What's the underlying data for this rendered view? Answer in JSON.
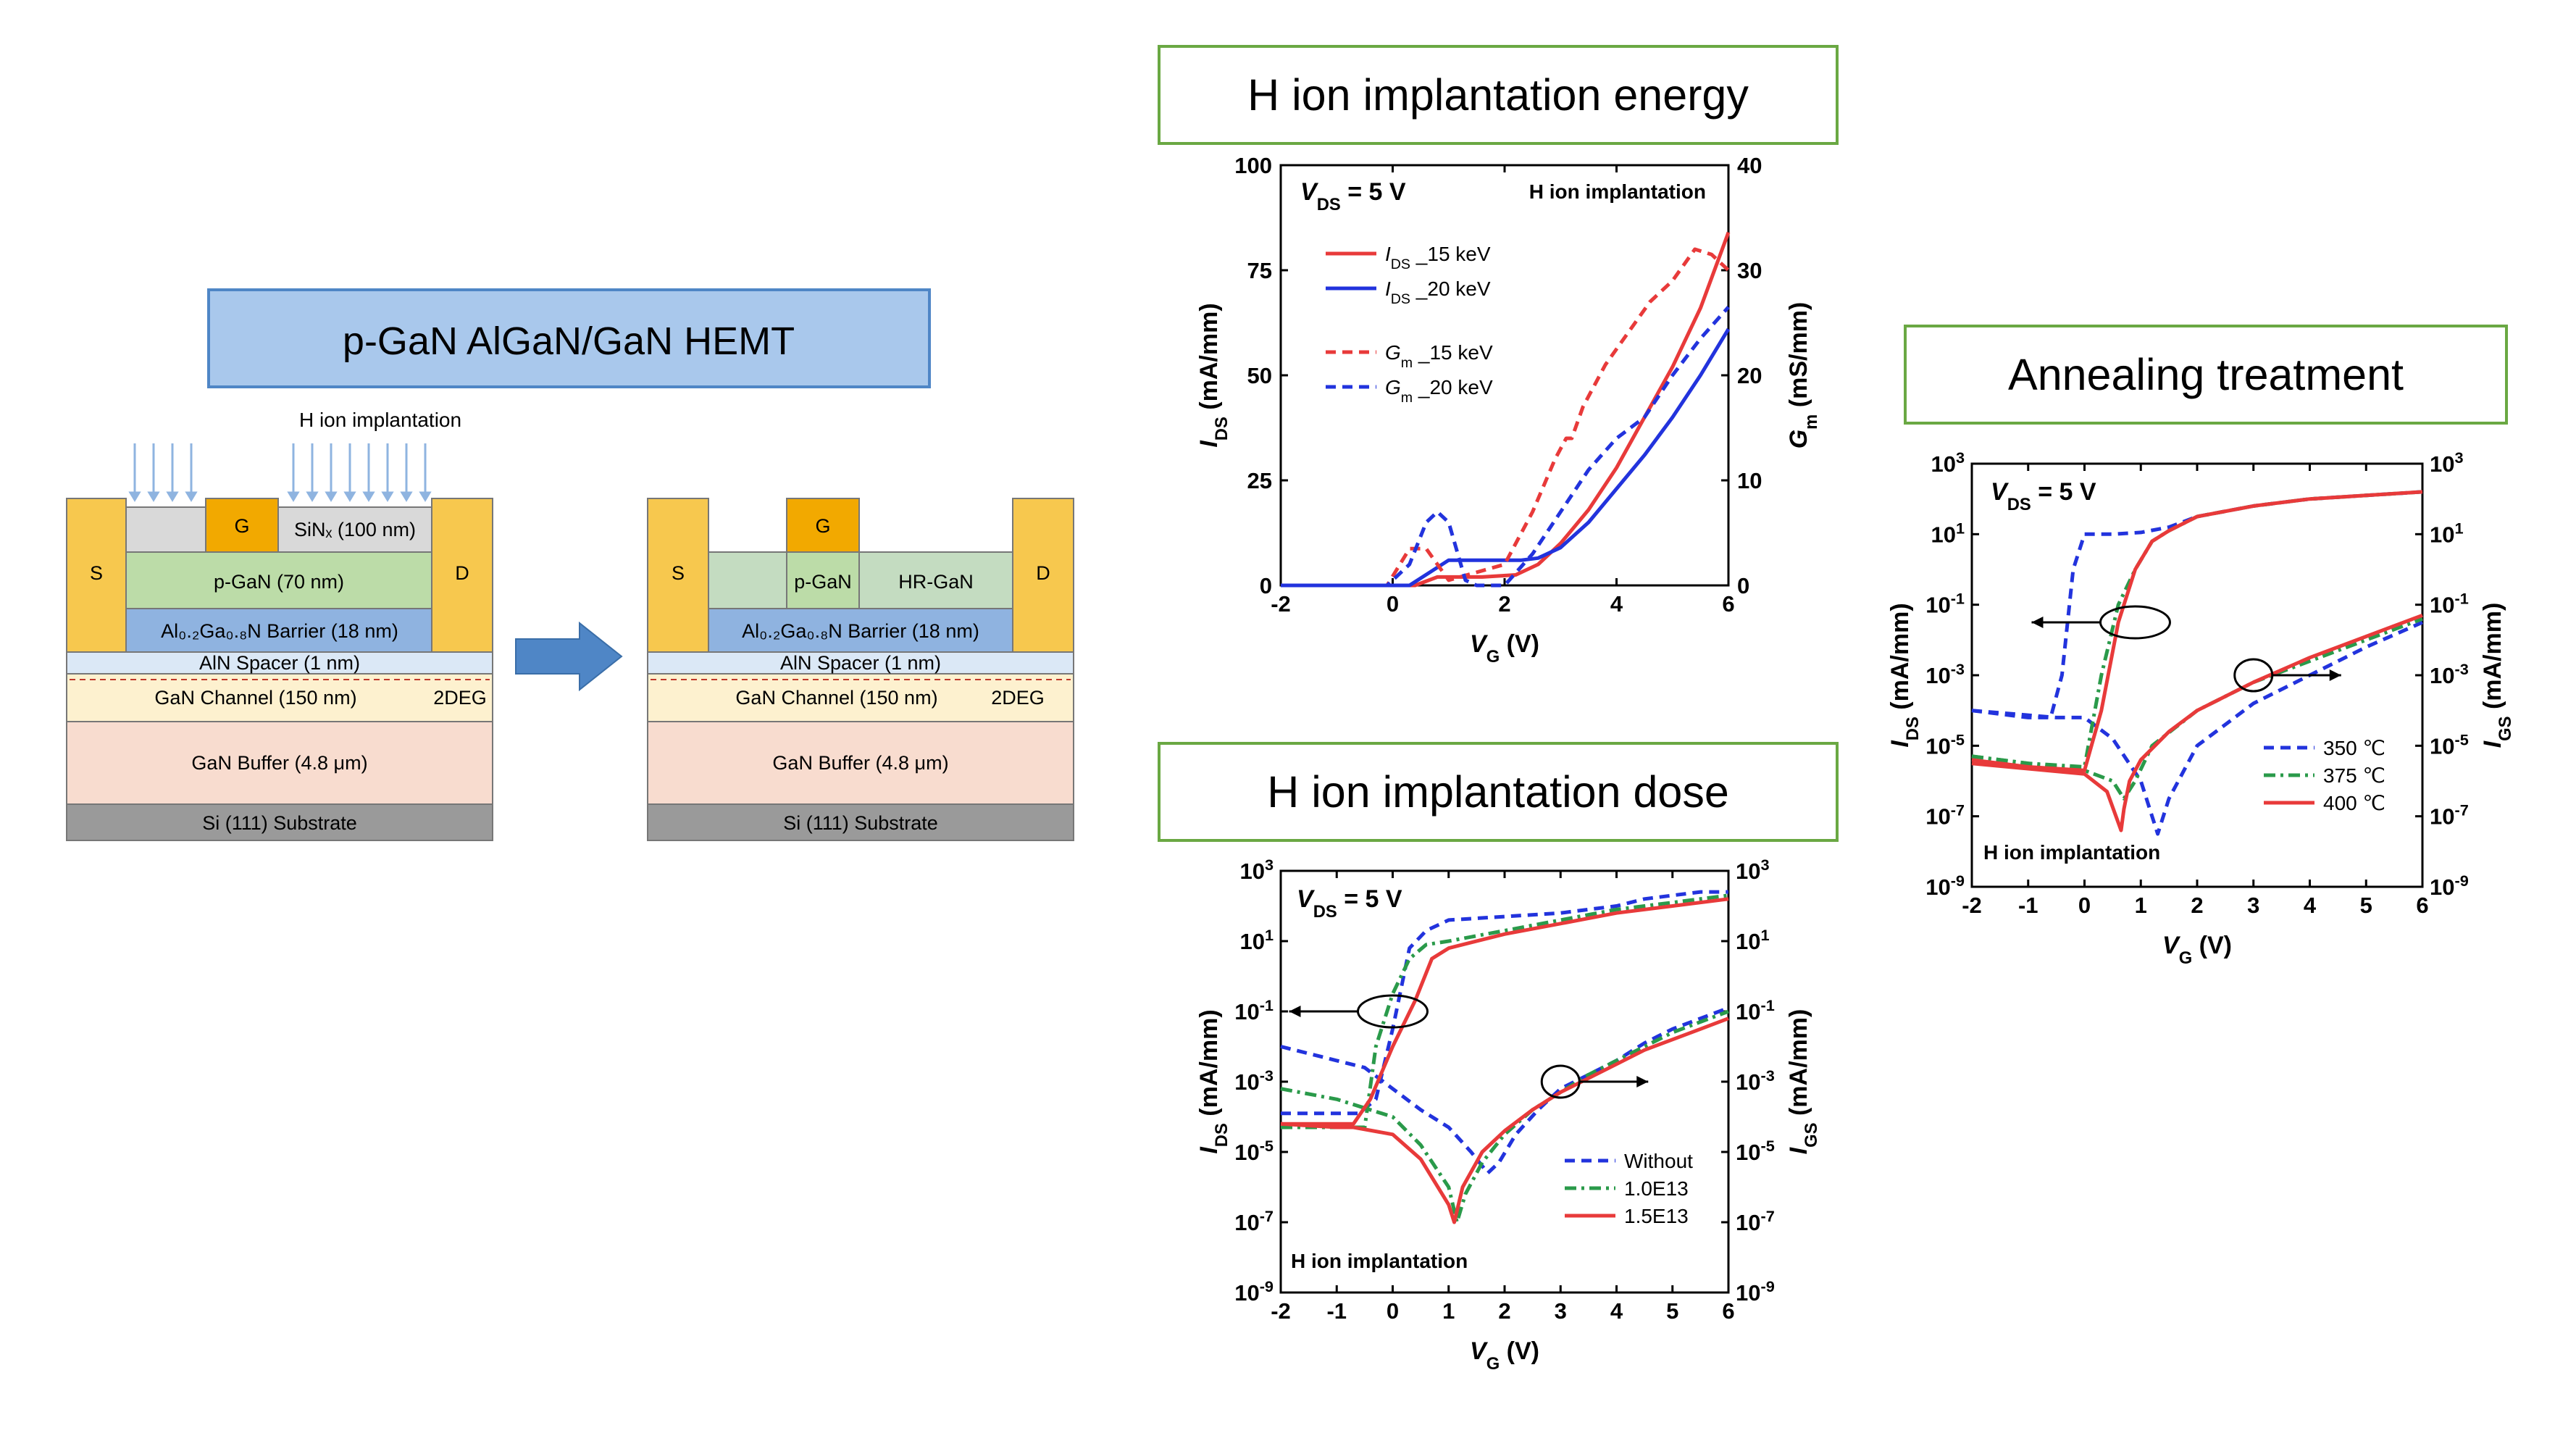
{
  "diagram": {
    "title": "p-GaN AlGaN/GaN HEMT",
    "implant_label": "H ion implantation",
    "device_before": {
      "source": "S",
      "gate": "G",
      "drain": "D",
      "sin": "SiNₓ (100 nm)",
      "pgan": "p-GaN (70 nm)",
      "barrier": "Al₀.₂Ga₀.₈N  Barrier (18 nm)",
      "spacer": "AlN Spacer (1 nm)",
      "channel": "GaN Channel (150 nm)",
      "twodeg": "2DEG",
      "buffer": "GaN Buffer (4.8 μm)",
      "substrate": "Si (111) Substrate"
    },
    "device_after": {
      "source": "S",
      "gate": "G",
      "drain": "D",
      "pgan": "p-GaN",
      "hrgan": "HR-GaN",
      "barrier": "Al₀.₂Ga₀.₈N  Barrier (18 nm)",
      "spacer": "AlN Spacer (1 nm)",
      "channel": "GaN Channel (150 nm)",
      "twodeg": "2DEG",
      "buffer": "GaN Buffer (4.8 μm)",
      "substrate": "Si (111) Substrate"
    }
  },
  "captions": {
    "energy": "H ion implantation energy",
    "dose": "H ion implantation dose",
    "anneal": "Annealing treatment"
  },
  "colors": {
    "red": "#e83a3a",
    "blue": "#2233dd",
    "green": "#2a9a4a",
    "caption_border": "#6aa843",
    "arrow": "#4f86c6"
  },
  "chart_data": [
    {
      "id": "energy",
      "type": "line",
      "vds": "V_DS = 5 V",
      "note": "H ion implantation",
      "xlabel": "V_G (V)",
      "ylabel": "I_DS (mA/mm)",
      "y2label": "G_m (mS/mm)",
      "xlim": [
        -2,
        6
      ],
      "ylim": [
        0,
        100
      ],
      "y2lim": [
        0,
        40
      ],
      "xticks": [
        "-2",
        "0",
        "2",
        "4",
        "6"
      ],
      "yticks": [
        "0",
        "25",
        "50",
        "75",
        "100"
      ],
      "y2ticks": [
        "0",
        "10",
        "20",
        "30",
        "40"
      ],
      "series": [
        {
          "name": "I_DS _15 keV",
          "axis": "left",
          "color": "red",
          "dash": "solid",
          "x": [
            -2,
            0.4,
            0.8,
            1.6,
            2.2,
            2.6,
            3.0,
            3.5,
            4.0,
            4.5,
            5.0,
            5.5,
            6.0
          ],
          "y": [
            0,
            0,
            2,
            2,
            2.5,
            5,
            10,
            18,
            28,
            40,
            52,
            66,
            84
          ]
        },
        {
          "name": "I_DS _20 keV",
          "axis": "left",
          "color": "blue",
          "dash": "solid",
          "x": [
            -2,
            0.3,
            1.0,
            2.3,
            2.6,
            3.0,
            3.5,
            4.0,
            4.5,
            5.0,
            5.5,
            6.0
          ],
          "y": [
            0,
            0,
            6,
            6,
            6.5,
            9,
            15,
            23,
            31,
            40,
            50,
            61
          ]
        },
        {
          "name": "G_m _15 keV",
          "axis": "right",
          "color": "red",
          "dash": "dash",
          "x": [
            -2,
            -0.1,
            0.3,
            0.6,
            1.0,
            2.0,
            2.5,
            2.9,
            3.1,
            3.2,
            3.4,
            3.8,
            4.2,
            4.6,
            5.0,
            5.4,
            5.7,
            6.0
          ],
          "y": [
            0,
            0,
            3.5,
            3.5,
            0.5,
            2,
            7,
            12,
            14,
            14,
            17,
            21,
            24,
            27,
            29,
            32,
            31.5,
            30
          ]
        },
        {
          "name": "G_m _20 keV",
          "axis": "right",
          "color": "blue",
          "dash": "dash",
          "x": [
            -2,
            -0.1,
            0.3,
            0.6,
            0.8,
            1.0,
            1.3,
            1.5,
            2.0,
            2.5,
            3.0,
            3.5,
            4.0,
            4.5,
            5.0,
            5.5,
            6.0
          ],
          "y": [
            0,
            0,
            2,
            6,
            7,
            6,
            0.5,
            0,
            0,
            3,
            7,
            11,
            14,
            16,
            20,
            23.5,
            26.5
          ]
        }
      ]
    },
    {
      "id": "dose",
      "type": "line",
      "vds": "V_DS = 5 V",
      "note": "H ion implantation",
      "xlabel": "V_G (V)",
      "ylabel": "I_DS (mA/mm)",
      "y2label": "I_GS (mA/mm)",
      "xlim": [
        -2,
        6
      ],
      "ylim_log10": [
        -9,
        3
      ],
      "xticks": [
        "-2",
        "-1",
        "0",
        "1",
        "2",
        "3",
        "4",
        "5",
        "6"
      ],
      "ytick_exponents": [
        "3",
        "1",
        "-1",
        "-3",
        "-5",
        "-7",
        "-9"
      ],
      "series": [
        {
          "name": "Without",
          "color": "blue",
          "dash": "dash",
          "x": [
            -2,
            -1.0,
            -0.5,
            0,
            0.5,
            1.0,
            1.4,
            1.7,
            1.9,
            2.2,
            2.6,
            3.0,
            3.5,
            4.0,
            4.5,
            5.0,
            5.5,
            6.0
          ],
          "log10y": [
            -2.0,
            -2.4,
            -2.6,
            -3.2,
            -3.8,
            -4.3,
            -5.0,
            -5.6,
            -5.3,
            -4.5,
            -3.8,
            -3.2,
            -2.8,
            -2.4,
            -1.9,
            -1.5,
            -1.2,
            -0.9
          ]
        },
        {
          "name": "Without_IDS",
          "color": "blue",
          "dash": "dash",
          "x": [
            -2,
            -0.6,
            -0.3,
            0,
            0.3,
            0.6,
            1.0,
            2.0,
            3.0,
            4.0,
            4.5,
            5.0,
            5.5,
            6.0
          ],
          "log10y": [
            -3.9,
            -3.9,
            -3.5,
            -1.5,
            0.8,
            1.3,
            1.6,
            1.7,
            1.8,
            2.0,
            2.2,
            2.3,
            2.4,
            2.4
          ]
        },
        {
          "name": "1.0E13",
          "color": "green",
          "dash": "dashdot",
          "x": [
            -2,
            -1.0,
            0,
            0.5,
            1.0,
            1.15,
            1.3,
            1.6,
            2.0,
            2.5,
            3.0,
            3.5,
            4.0,
            4.5,
            5.0,
            5.5,
            6.0
          ],
          "log10y": [
            -3.2,
            -3.5,
            -4.0,
            -4.8,
            -6.0,
            -7.0,
            -6.2,
            -5.3,
            -4.5,
            -3.8,
            -3.3,
            -2.8,
            -2.4,
            -2.0,
            -1.6,
            -1.3,
            -1.0
          ]
        },
        {
          "name": "1.0E13_IDS",
          "color": "green",
          "dash": "dashdot",
          "x": [
            -2,
            -0.5,
            -0.3,
            0,
            0.3,
            0.6,
            1.0,
            2.0,
            3.0,
            4.0,
            5.0,
            6.0
          ],
          "log10y": [
            -4.3,
            -4.3,
            -2.0,
            -0.5,
            0.5,
            0.9,
            1.0,
            1.3,
            1.6,
            1.9,
            2.1,
            2.3
          ]
        },
        {
          "name": "1.5E13",
          "color": "red",
          "dash": "solid",
          "x": [
            -2,
            -1.0,
            -0.7,
            0,
            0.5,
            1.0,
            1.1,
            1.25,
            1.6,
            2.0,
            2.5,
            3.0,
            3.5,
            4.0,
            4.5,
            5.0,
            5.5,
            6.0
          ],
          "log10y": [
            -4.2,
            -4.3,
            -4.3,
            -4.5,
            -5.2,
            -6.5,
            -7.0,
            -6.0,
            -5.0,
            -4.4,
            -3.8,
            -3.3,
            -2.9,
            -2.5,
            -2.1,
            -1.8,
            -1.5,
            -1.2
          ]
        },
        {
          "name": "1.5E13_IDS",
          "color": "red",
          "dash": "solid",
          "x": [
            -2,
            -0.7,
            -0.4,
            0,
            0.4,
            0.7,
            1.0,
            2.0,
            3.0,
            4.0,
            5.0,
            6.0
          ],
          "log10y": [
            -4.2,
            -4.2,
            -3.5,
            -2.0,
            -0.7,
            0.5,
            0.8,
            1.2,
            1.5,
            1.8,
            2.0,
            2.2
          ]
        }
      ]
    },
    {
      "id": "anneal",
      "type": "line",
      "vds": "V_DS = 5 V",
      "note": "H ion implantation",
      "xlabel": "V_G (V)",
      "ylabel": "I_DS (mA/mm)",
      "y2label": "I_GS (mA/mm)",
      "xlim": [
        -2,
        6
      ],
      "ylim_log10": [
        -9,
        3
      ],
      "xticks": [
        "-2",
        "-1",
        "0",
        "1",
        "2",
        "3",
        "4",
        "5",
        "6"
      ],
      "ytick_exponents": [
        "3",
        "1",
        "-1",
        "-3",
        "-5",
        "-7",
        "-9"
      ],
      "series": [
        {
          "name": "350 ℃",
          "color": "blue",
          "dash": "dash",
          "x": [
            -2,
            -1.0,
            -0.6,
            -0.4,
            -0.2,
            0,
            0.5,
            1.0,
            1.5,
            2.0,
            3.0,
            4.0,
            5.0,
            6.0
          ],
          "log10y": [
            -4.0,
            -4.2,
            -4.2,
            -3.0,
            0.0,
            1.0,
            1.0,
            1.05,
            1.2,
            1.5,
            1.8,
            2.0,
            2.1,
            2.2
          ]
        },
        {
          "name": "350_IGS",
          "color": "blue",
          "dash": "dash",
          "x": [
            -2,
            -0.5,
            0,
            0.5,
            1.0,
            1.2,
            1.3,
            1.5,
            2.0,
            3.0,
            4.0,
            5.0,
            6.0
          ],
          "log10y": [
            -4.0,
            -4.2,
            -4.2,
            -4.8,
            -6.0,
            -7.0,
            -7.5,
            -6.5,
            -5.0,
            -3.8,
            -3.0,
            -2.2,
            -1.5
          ]
        },
        {
          "name": "375 ℃",
          "color": "green",
          "dash": "dashdot",
          "x": [
            -2,
            -1.0,
            0,
            0.3,
            0.6,
            0.9,
            1.2,
            1.5,
            2.0,
            3.0,
            4.0,
            5.0,
            6.0
          ],
          "log10y": [
            -5.3,
            -5.5,
            -5.6,
            -3.0,
            -1.0,
            0.0,
            0.8,
            1.1,
            1.5,
            1.8,
            2.0,
            2.1,
            2.2
          ]
        },
        {
          "name": "375_IGS",
          "color": "green",
          "dash": "dashdot",
          "x": [
            -2,
            0,
            0.5,
            0.7,
            0.9,
            1.2,
            2.0,
            3.0,
            4.0,
            5.0,
            6.0
          ],
          "log10y": [
            -5.3,
            -5.7,
            -6.0,
            -6.5,
            -6.0,
            -5.0,
            -4.0,
            -3.2,
            -2.6,
            -2.0,
            -1.4
          ]
        },
        {
          "name": "400 ℃",
          "color": "red",
          "dash": "solid",
          "x": [
            -2,
            -1.0,
            0,
            0.3,
            0.6,
            0.9,
            1.2,
            1.5,
            2.0,
            3.0,
            4.0,
            5.0,
            6.0
          ],
          "log10y": [
            -5.4,
            -5.6,
            -5.7,
            -4.0,
            -1.5,
            0.0,
            0.8,
            1.1,
            1.5,
            1.8,
            2.0,
            2.1,
            2.2
          ]
        },
        {
          "name": "400_IGS",
          "color": "red",
          "dash": "solid",
          "x": [
            -2,
            0,
            0.4,
            0.65,
            0.7,
            0.8,
            1.0,
            1.5,
            2.0,
            3.0,
            4.0,
            5.0,
            6.0
          ],
          "log10y": [
            -5.5,
            -5.8,
            -6.3,
            -7.4,
            -6.8,
            -6.0,
            -5.4,
            -4.6,
            -4.0,
            -3.2,
            -2.5,
            -1.9,
            -1.3
          ]
        }
      ]
    }
  ]
}
